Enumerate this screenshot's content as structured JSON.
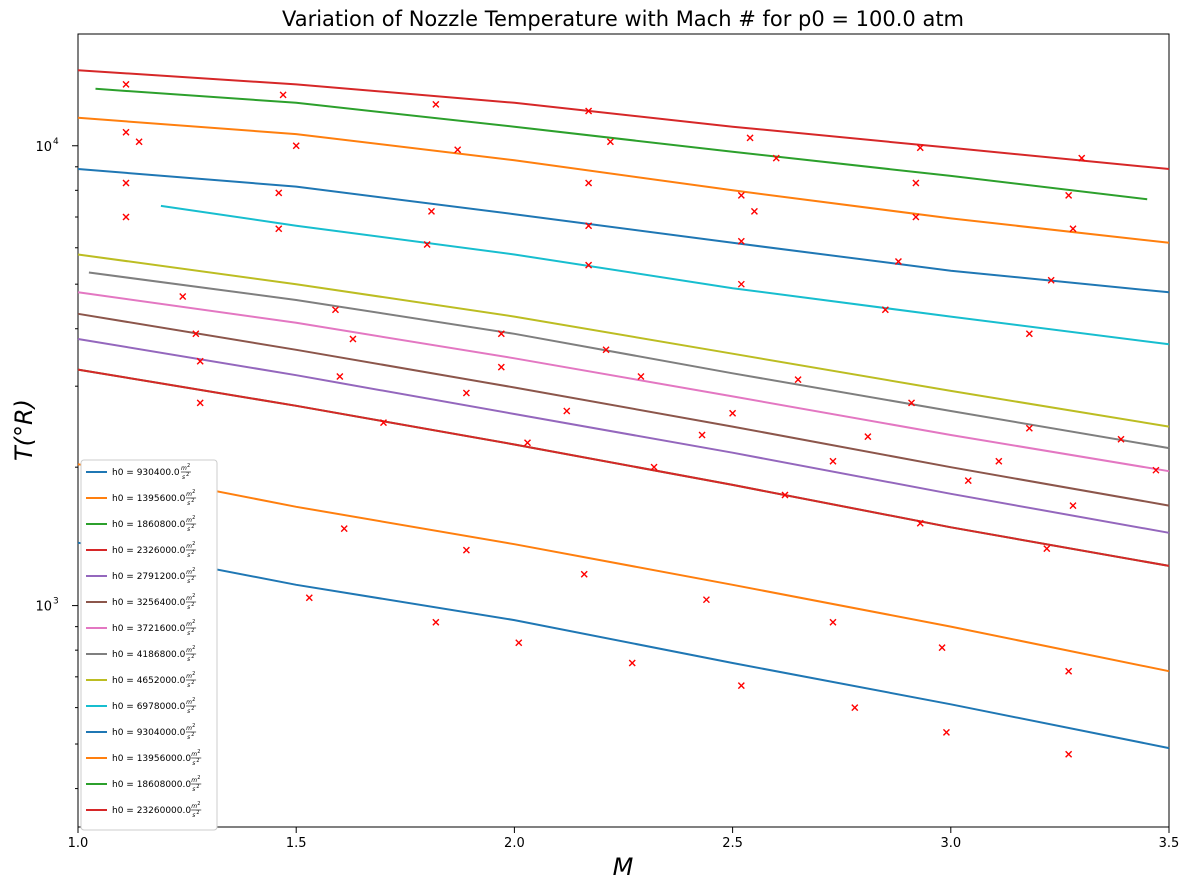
{
  "chart_data": {
    "type": "line",
    "title": "Variation of Nozzle Temperature with Mach # for p0 = 100.0 atm",
    "xlabel": "M",
    "ylabel": "T(°R)",
    "xlim": [
      1.0,
      3.5
    ],
    "ylim": [
      330,
      17500
    ],
    "yscale": "log",
    "grid": false,
    "legend_position": "lower-left",
    "x_ticks": [
      "1.0",
      "1.5",
      "2.0",
      "2.5",
      "3.0",
      "3.5"
    ],
    "y_ticks": [
      {
        "value": 1000,
        "base": "10",
        "exp": "3"
      },
      {
        "value": 10000,
        "base": "10",
        "exp": "4"
      }
    ],
    "legend_unit": {
      "num": "m",
      "num_exp": "2",
      "den": "s",
      "den_exp": "2"
    },
    "series": [
      {
        "name": "h0 = 930400.0",
        "color": "#1f77b4",
        "x": [
          1.0,
          1.5,
          2.0,
          2.5,
          3.0,
          3.5
        ],
        "y": [
          1370,
          1110,
          930,
          750,
          610,
          490
        ]
      },
      {
        "name": "h0 = 1395600.0",
        "color": "#ff7f0e",
        "x": [
          1.0,
          1.5,
          2.0,
          2.5,
          3.0,
          3.5
        ],
        "y": [
          2030,
          1640,
          1360,
          1110,
          900,
          720
        ]
      },
      {
        "name": "h0 = 1860800.0",
        "color": "#2ca02c",
        "x": [
          1.0,
          1.5,
          2.0,
          2.5,
          3.0,
          3.5
        ],
        "y": [
          3260,
          2720,
          2240,
          1830,
          1480,
          1220
        ]
      },
      {
        "name": "h0 = 2326000.0",
        "color": "#d62728",
        "x": [
          1.0,
          1.5,
          2.0,
          2.5,
          3.0,
          3.5
        ],
        "y": [
          3260,
          2720,
          2240,
          1830,
          1480,
          1220
        ]
      },
      {
        "name": "h0 = 2791200.0",
        "color": "#9467bd",
        "x": [
          1.0,
          1.5,
          2.0,
          2.5,
          3.0,
          3.5
        ],
        "y": [
          3800,
          3170,
          2610,
          2150,
          1750,
          1440
        ]
      },
      {
        "name": "h0 = 3256400.0",
        "color": "#8c564b",
        "x": [
          1.0,
          1.5,
          2.0,
          2.5,
          3.0,
          3.5
        ],
        "y": [
          4310,
          3600,
          2980,
          2450,
          2000,
          1650
        ]
      },
      {
        "name": "h0 = 3721600.0",
        "color": "#e377c2",
        "x": [
          1.0,
          1.5,
          2.0,
          2.5,
          3.0,
          3.5
        ],
        "y": [
          4800,
          4120,
          3450,
          2850,
          2350,
          1960
        ]
      },
      {
        "name": "h0 = 4186800.0",
        "color": "#7f7f7f",
        "x": [
          1.025,
          1.5,
          2.0,
          2.5,
          3.0,
          3.5
        ],
        "y": [
          5300,
          4620,
          3900,
          3200,
          2650,
          2200
        ]
      },
      {
        "name": "h0 = 4652000.0",
        "color": "#bcbd22",
        "x": [
          1.0,
          1.5,
          2.0,
          2.5,
          3.0,
          3.5
        ],
        "y": [
          5800,
          5000,
          4250,
          3530,
          2930,
          2450
        ]
      },
      {
        "name": "h0 = 6978000.0",
        "color": "#17becf",
        "x": [
          1.19,
          1.5,
          2.0,
          2.5,
          3.0,
          3.5
        ],
        "y": [
          7400,
          6700,
          5800,
          4900,
          4250,
          3700
        ]
      },
      {
        "name": "h0 = 9304000.0",
        "color": "#1f77b4",
        "x": [
          1.0,
          1.5,
          2.0,
          2.5,
          3.0,
          3.5
        ],
        "y": [
          8900,
          8150,
          7100,
          6150,
          5350,
          4800
        ]
      },
      {
        "name": "h0 = 13956000.0",
        "color": "#ff7f0e",
        "x": [
          1.0,
          1.5,
          2.0,
          2.5,
          3.0,
          3.5
        ],
        "y": [
          11500,
          10600,
          9300,
          8000,
          6950,
          6150
        ]
      },
      {
        "name": "h0 = 18608000.0",
        "color": "#2ca02c",
        "x": [
          1.04,
          1.5,
          2.0,
          2.5,
          3.0,
          3.45
        ],
        "y": [
          13300,
          12400,
          11000,
          9700,
          8600,
          7650
        ]
      },
      {
        "name": "h0 = 23260000.0",
        "color": "#d62728",
        "x": [
          1.0,
          1.5,
          2.0,
          2.5,
          3.0,
          3.5
        ],
        "y": [
          14600,
          13600,
          12400,
          11000,
          9900,
          8900
        ]
      }
    ],
    "markers": {
      "symbol": "x",
      "color": "#ff0000",
      "points": [
        [
          1.11,
          13600
        ],
        [
          1.11,
          10700
        ],
        [
          1.14,
          10200
        ],
        [
          1.11,
          8300
        ],
        [
          1.11,
          7000
        ],
        [
          1.47,
          12900
        ],
        [
          1.5,
          10000
        ],
        [
          1.46,
          7900
        ],
        [
          1.46,
          6600
        ],
        [
          1.82,
          12300
        ],
        [
          1.87,
          9800
        ],
        [
          1.81,
          7200
        ],
        [
          1.8,
          6100
        ],
        [
          2.17,
          11900
        ],
        [
          2.22,
          10200
        ],
        [
          2.17,
          8300
        ],
        [
          2.17,
          6700
        ],
        [
          2.17,
          5500
        ],
        [
          2.54,
          10400
        ],
        [
          2.6,
          9400
        ],
        [
          2.52,
          7800
        ],
        [
          2.55,
          7200
        ],
        [
          2.52,
          6200
        ],
        [
          2.52,
          5000
        ],
        [
          2.93,
          9900
        ],
        [
          2.92,
          8300
        ],
        [
          2.92,
          7000
        ],
        [
          2.88,
          5600
        ],
        [
          2.85,
          4400
        ],
        [
          3.3,
          9400
        ],
        [
          3.27,
          7800
        ],
        [
          3.28,
          6600
        ],
        [
          3.23,
          5100
        ],
        [
          3.18,
          3900
        ],
        [
          1.24,
          4700
        ],
        [
          1.27,
          3900
        ],
        [
          1.28,
          3400
        ],
        [
          1.28,
          2760
        ],
        [
          1.59,
          4400
        ],
        [
          1.63,
          3800
        ],
        [
          1.6,
          3150
        ],
        [
          1.7,
          2500
        ],
        [
          1.97,
          3900
        ],
        [
          1.97,
          3300
        ],
        [
          1.89,
          2900
        ],
        [
          2.03,
          2260
        ],
        [
          2.21,
          3600
        ],
        [
          2.29,
          3150
        ],
        [
          2.12,
          2650
        ],
        [
          2.32,
          2000
        ],
        [
          2.65,
          3100
        ],
        [
          2.5,
          2620
        ],
        [
          2.43,
          2350
        ],
        [
          2.62,
          1740
        ],
        [
          2.91,
          2760
        ],
        [
          2.81,
          2330
        ],
        [
          2.73,
          2060
        ],
        [
          2.93,
          1510
        ],
        [
          3.18,
          2430
        ],
        [
          3.11,
          2060
        ],
        [
          3.04,
          1870
        ],
        [
          3.22,
          1330
        ],
        [
          3.39,
          2300
        ],
        [
          3.47,
          1970
        ],
        [
          3.28,
          1650
        ],
        [
          1.3,
          1700
        ],
        [
          1.61,
          1470
        ],
        [
          1.89,
          1320
        ],
        [
          2.16,
          1170
        ],
        [
          2.44,
          1030
        ],
        [
          2.73,
          920
        ],
        [
          2.98,
          810
        ],
        [
          3.27,
          720
        ],
        [
          1.53,
          1040
        ],
        [
          1.82,
          920
        ],
        [
          2.01,
          830
        ],
        [
          2.27,
          750
        ],
        [
          2.52,
          670
        ],
        [
          2.78,
          600
        ],
        [
          2.99,
          530
        ],
        [
          3.27,
          475
        ]
      ]
    }
  }
}
